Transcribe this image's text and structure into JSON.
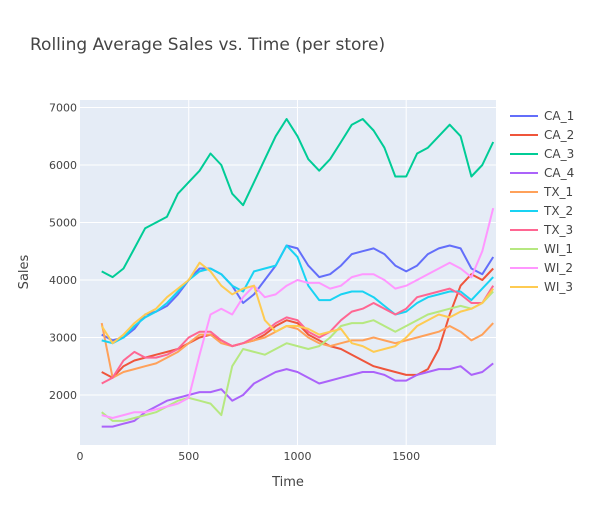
{
  "chart_data": {
    "type": "line",
    "title": "Rolling Average Sales vs. Time (per store)",
    "xlabel": "Time",
    "ylabel": "Sales",
    "xlim": [
      0,
      1913
    ],
    "ylim": [
      1130,
      7130
    ],
    "xticks": [
      0,
      500,
      1000,
      1500
    ],
    "yticks": [
      2000,
      3000,
      4000,
      5000,
      6000,
      7000
    ],
    "grid": true,
    "legend": "right",
    "x": [
      100,
      150,
      200,
      250,
      300,
      350,
      400,
      450,
      500,
      550,
      600,
      650,
      700,
      750,
      800,
      850,
      900,
      950,
      1000,
      1050,
      1100,
      1150,
      1200,
      1250,
      1300,
      1350,
      1400,
      1450,
      1500,
      1550,
      1600,
      1650,
      1700,
      1750,
      1800,
      1850,
      1900
    ],
    "series": [
      {
        "name": "CA_1",
        "color": "#636efa",
        "values": [
          3050,
          2950,
          3000,
          3150,
          3400,
          3450,
          3550,
          3750,
          4000,
          4200,
          4200,
          4100,
          3900,
          3600,
          3750,
          4000,
          4250,
          4600,
          4550,
          4250,
          4050,
          4100,
          4250,
          4450,
          4500,
          4550,
          4450,
          4250,
          4150,
          4250,
          4450,
          4550,
          4600,
          4550,
          4200,
          4100,
          4400
        ]
      },
      {
        "name": "CA_2",
        "color": "#ef553b",
        "values": [
          2400,
          2300,
          2500,
          2600,
          2650,
          2700,
          2750,
          2800,
          2900,
          3000,
          3050,
          2950,
          2850,
          2900,
          2950,
          3050,
          3200,
          3300,
          3250,
          3050,
          2950,
          2850,
          2800,
          2700,
          2600,
          2500,
          2450,
          2400,
          2350,
          2350,
          2450,
          2800,
          3400,
          3900,
          4100,
          4000,
          4200
        ]
      },
      {
        "name": "CA_3",
        "color": "#00cc96",
        "values": [
          4150,
          4050,
          4200,
          4550,
          4900,
          5000,
          5100,
          5500,
          5700,
          5900,
          6200,
          6000,
          5500,
          5300,
          5700,
          6100,
          6500,
          6800,
          6500,
          6100,
          5900,
          6100,
          6400,
          6700,
          6800,
          6600,
          6300,
          5800,
          5800,
          6200,
          6300,
          6500,
          6700,
          6500,
          5800,
          6000,
          6400
        ]
      },
      {
        "name": "CA_4",
        "color": "#ab63fa",
        "values": [
          1450,
          1450,
          1500,
          1550,
          1700,
          1800,
          1900,
          1950,
          2000,
          2050,
          2050,
          2100,
          1900,
          2000,
          2200,
          2300,
          2400,
          2450,
          2400,
          2300,
          2200,
          2250,
          2300,
          2350,
          2400,
          2400,
          2350,
          2250,
          2250,
          2350,
          2400,
          2450,
          2450,
          2500,
          2350,
          2400,
          2550
        ]
      },
      {
        "name": "TX_1",
        "color": "#ffa15a",
        "values": [
          3250,
          2300,
          2400,
          2450,
          2500,
          2550,
          2650,
          2750,
          2900,
          3050,
          3050,
          2900,
          2850,
          2900,
          2950,
          3000,
          3100,
          3200,
          3150,
          3000,
          2900,
          2850,
          2900,
          2950,
          2950,
          3000,
          2950,
          2900,
          2950,
          3000,
          3050,
          3100,
          3200,
          3100,
          2950,
          3050,
          3250
        ]
      },
      {
        "name": "TX_2",
        "color": "#19d3f3",
        "values": [
          2950,
          2900,
          3000,
          3200,
          3350,
          3450,
          3600,
          3800,
          4000,
          4150,
          4200,
          4100,
          3900,
          3800,
          4150,
          4200,
          4250,
          4600,
          4400,
          3900,
          3650,
          3650,
          3750,
          3800,
          3800,
          3700,
          3550,
          3400,
          3450,
          3600,
          3700,
          3750,
          3800,
          3800,
          3650,
          3850,
          4050
        ]
      },
      {
        "name": "TX_3",
        "color": "#ff6692",
        "values": [
          2200,
          2300,
          2600,
          2750,
          2650,
          2650,
          2700,
          2800,
          3000,
          3100,
          3100,
          2950,
          2850,
          2900,
          3000,
          3100,
          3250,
          3350,
          3300,
          3100,
          3000,
          3100,
          3300,
          3450,
          3500,
          3600,
          3500,
          3400,
          3500,
          3700,
          3750,
          3800,
          3850,
          3750,
          3600,
          3600,
          3900
        ]
      },
      {
        "name": "WI_1",
        "color": "#b6e880",
        "values": [
          1700,
          1550,
          1550,
          1600,
          1650,
          1700,
          1800,
          1900,
          1950,
          1900,
          1850,
          1650,
          2500,
          2800,
          2750,
          2700,
          2800,
          2900,
          2850,
          2800,
          2850,
          3000,
          3200,
          3250,
          3250,
          3300,
          3200,
          3100,
          3200,
          3300,
          3400,
          3450,
          3500,
          3550,
          3500,
          3600,
          3800
        ]
      },
      {
        "name": "WI_2",
        "color": "#ff97ff",
        "values": [
          1650,
          1600,
          1650,
          1700,
          1700,
          1750,
          1800,
          1850,
          1950,
          2700,
          3400,
          3500,
          3400,
          3700,
          3900,
          3700,
          3750,
          3900,
          4000,
          3950,
          3950,
          3850,
          3900,
          4050,
          4100,
          4100,
          4000,
          3850,
          3900,
          4000,
          4100,
          4200,
          4300,
          4200,
          4050,
          4500,
          5250
        ]
      },
      {
        "name": "WI_3",
        "color": "#fecb52",
        "values": [
          3200,
          2900,
          3050,
          3250,
          3400,
          3500,
          3700,
          3850,
          4000,
          4300,
          4150,
          3900,
          3750,
          3850,
          3900,
          3300,
          3100,
          3200,
          3200,
          3150,
          3050,
          3100,
          3150,
          2900,
          2850,
          2750,
          2800,
          2850,
          3000,
          3200,
          3300,
          3400,
          3350,
          3450,
          3500,
          3600,
          3850
        ]
      }
    ]
  }
}
